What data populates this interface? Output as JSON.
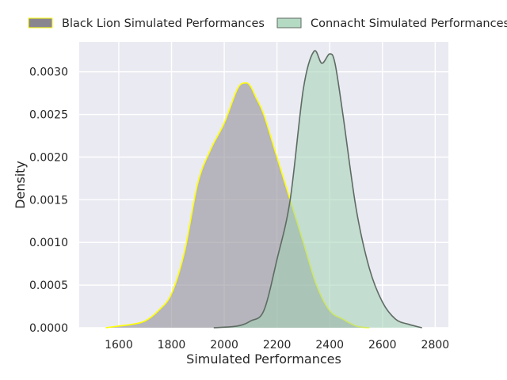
{
  "chart_data": {
    "type": "area",
    "title": "",
    "xlabel": "Simulated Performances",
    "ylabel": "Density",
    "xlim": [
      1450,
      2850
    ],
    "ylim": [
      0,
      0.00335
    ],
    "xticks": [
      1600,
      1800,
      2000,
      2200,
      2400,
      2600,
      2800
    ],
    "xtick_labels": [
      "1600",
      "1800",
      "2000",
      "2200",
      "2400",
      "2600",
      "2800"
    ],
    "yticks": [
      0,
      0.0005,
      0.001,
      0.0015,
      0.002,
      0.0025,
      0.003
    ],
    "ytick_labels": [
      "0.0000",
      "0.0005",
      "0.0010",
      "0.0015",
      "0.0020",
      "0.0025",
      "0.0030"
    ],
    "grid": true,
    "legend_position": "top",
    "series": [
      {
        "name": "Black Lion Simulated Performances",
        "fill_color": "#8a8690",
        "line_color": "#ffff00",
        "x": [
          1550,
          1600,
          1650,
          1700,
          1750,
          1800,
          1850,
          1900,
          1950,
          2000,
          2050,
          2080,
          2100,
          2120,
          2150,
          2200,
          2250,
          2300,
          2350,
          2400,
          2450,
          2500,
          2550
        ],
        "y": [
          0.0,
          2e-05,
          4e-05,
          8e-05,
          0.0002,
          0.0004,
          0.0009,
          0.0017,
          0.0021,
          0.0024,
          0.0028,
          0.00287,
          0.00283,
          0.0027,
          0.0025,
          0.002,
          0.0015,
          0.001,
          0.0005,
          0.0002,
          0.0001,
          2e-05,
          0.0
        ]
      },
      {
        "name": "Connacht Simulated Performances",
        "fill_color": "#a3d1b5",
        "line_color": "#5e6b62",
        "x": [
          1960,
          2050,
          2100,
          2150,
          2200,
          2250,
          2300,
          2340,
          2370,
          2400,
          2420,
          2450,
          2500,
          2550,
          2600,
          2650,
          2700,
          2750
        ],
        "y": [
          0.0,
          2e-05,
          8e-05,
          0.0002,
          0.0008,
          0.0015,
          0.0028,
          0.00324,
          0.0031,
          0.00321,
          0.0031,
          0.0025,
          0.0014,
          0.0007,
          0.0003,
          0.0001,
          4e-05,
          0.0
        ]
      }
    ]
  }
}
